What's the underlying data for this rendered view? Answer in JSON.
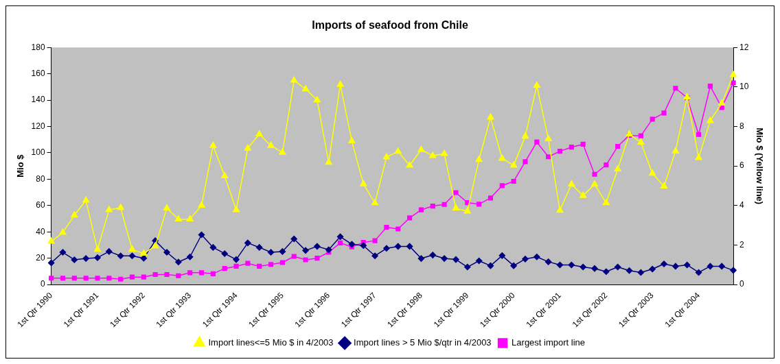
{
  "chart_data": {
    "type": "line",
    "title": "Imports of seafood from Chile",
    "ylabel": "Mio $",
    "y2label": "Mio $ (Yellow line)",
    "categories": [
      "1st Qtr 1990",
      null,
      null,
      null,
      "1st Qtr 1991",
      null,
      null,
      null,
      "1st Qtr 1992",
      null,
      null,
      null,
      "1st Qtr 1993",
      null,
      null,
      null,
      "1st Qtr 1994",
      null,
      null,
      null,
      "1st Qtr 1995",
      null,
      null,
      null,
      "1st Qtr 1996",
      null,
      null,
      null,
      "1st Qtr 1997",
      null,
      null,
      null,
      "1st Qtr 1998",
      null,
      null,
      null,
      "1st Qtr 1999",
      null,
      null,
      null,
      "1st Qtr 2000",
      null,
      null,
      null,
      "1st Qtr 2001",
      null,
      null,
      null,
      "1st Qtr 2002",
      null,
      null,
      null,
      "1st Qtr 2003",
      null,
      null,
      null,
      "1st Qtr 2004",
      null,
      null,
      null
    ],
    "series": [
      {
        "name": "Largest import line",
        "color": "#ff00ff",
        "marker": "square",
        "values": [
          4.9,
          4.9,
          4.9,
          4.9,
          4.9,
          4.9,
          4.1,
          5.7,
          5.7,
          7.6,
          7.6,
          6.7,
          9,
          9,
          8.2,
          12.2,
          13.9,
          16.1,
          13.9,
          15.3,
          16.7,
          21.4,
          18.8,
          20,
          24.5,
          31.6,
          28.6,
          32,
          33.3,
          43.5,
          42.2,
          50.6,
          56.7,
          59.6,
          60.8,
          69.8,
          62.2,
          61,
          65.7,
          75.1,
          78.4,
          93.3,
          108.2,
          97,
          101.2,
          104.3,
          106.5,
          83.7,
          90.8,
          104.9,
          113.3,
          112.9,
          125.5,
          130.2,
          149,
          141.8,
          113.9,
          150.6,
          134.3,
          153.1
        ]
      },
      {
        "name": "Import lines > 5 Mio $/qtr in 4/2003",
        "color": "#000080",
        "marker": "diamond",
        "values": [
          16.5,
          24.5,
          18.8,
          19.8,
          20.4,
          25.1,
          21.8,
          21.8,
          20,
          33.3,
          24.5,
          17.1,
          21,
          37.8,
          28.2,
          23.5,
          19,
          31.6,
          28.2,
          24.5,
          25.1,
          34.7,
          25.9,
          29,
          26.5,
          36.3,
          30.6,
          29.6,
          21.8,
          27.5,
          29,
          29,
          19.8,
          22.4,
          19.8,
          19,
          13.3,
          18,
          14.3,
          22,
          14.3,
          19.4,
          21,
          17.3,
          14.9,
          14.9,
          13.3,
          12.2,
          9.8,
          13.3,
          10.6,
          9.2,
          11.8,
          15.7,
          13.9,
          14.9,
          9.2,
          13.9,
          13.9,
          10.8
        ]
      },
      {
        "name": "Import lines<=5 Mio $ in 4/2003",
        "color": "#ffff00",
        "marker": "triangle",
        "axis": "y2",
        "values": [
          2.18,
          2.63,
          3.51,
          4.26,
          1.77,
          3.78,
          3.89,
          1.77,
          1.57,
          1.95,
          3.86,
          3.31,
          3.31,
          4.0,
          7.03,
          5.49,
          3.78,
          6.89,
          7.61,
          7.03,
          6.68,
          10.33,
          9.89,
          9.34,
          6.18,
          10.12,
          7.26,
          5.09,
          4.13,
          6.45,
          6.73,
          6.03,
          6.82,
          6.52,
          6.62,
          3.86,
          3.71,
          6.32,
          8.46,
          6.38,
          6.03,
          7.5,
          10.07,
          7.37,
          3.75,
          5.07,
          4.5,
          5.07,
          4.13,
          5.84,
          7.61,
          7.19,
          5.62,
          4.97,
          6.75,
          9.48,
          6.41,
          8.29,
          9.17,
          10.61
        ]
      }
    ],
    "ylim": [
      0,
      180
    ],
    "yticks": [
      0,
      20,
      40,
      60,
      80,
      100,
      120,
      140,
      160,
      180
    ],
    "y2lim": [
      0,
      12
    ],
    "y2ticks": [
      0,
      2,
      4,
      6,
      8,
      10,
      12
    ],
    "grid": false,
    "legend": "bottom"
  }
}
